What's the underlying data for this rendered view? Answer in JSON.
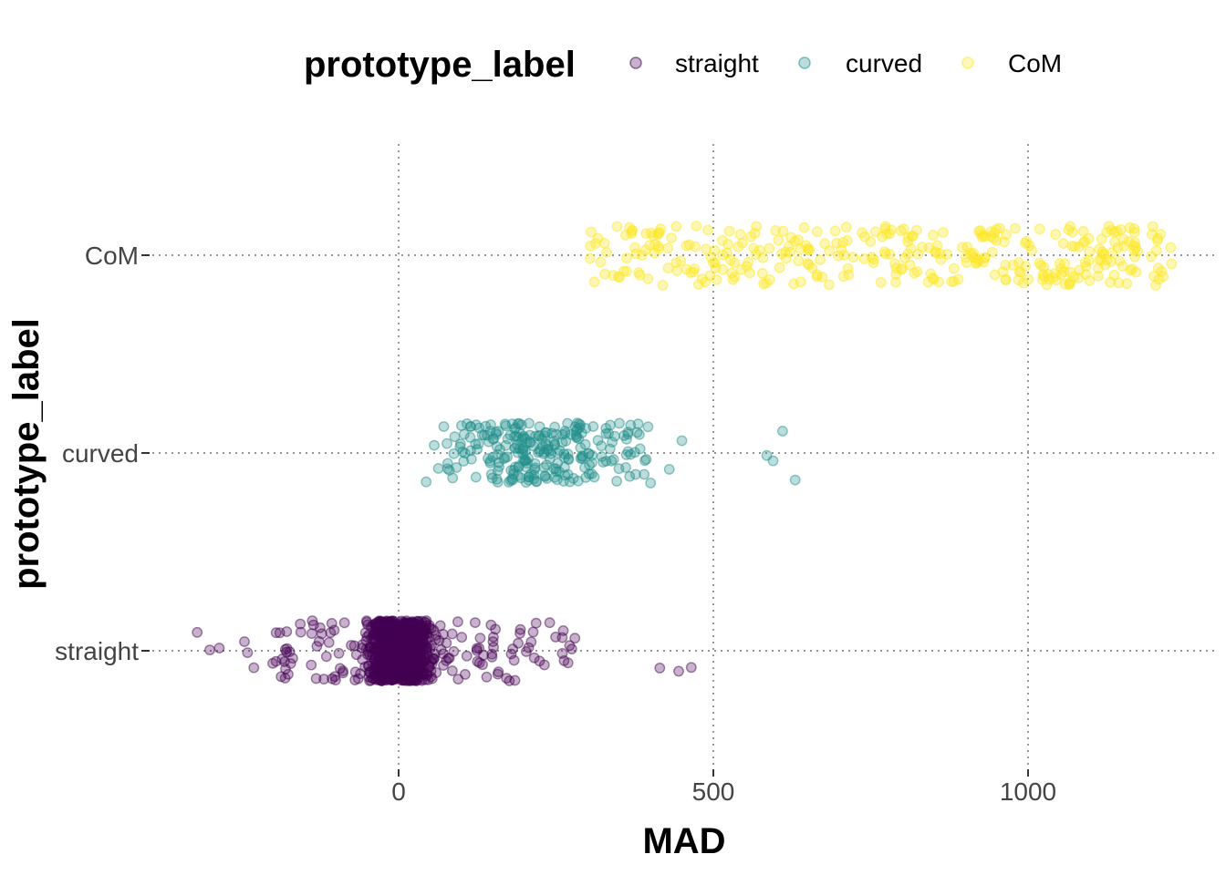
{
  "chart_data": {
    "type": "scatter",
    "jitter": true,
    "xlabel": "MAD",
    "ylabel": "prototype_label",
    "xlim": [
      -330,
      1300
    ],
    "x_ticks": [
      0,
      500,
      1000
    ],
    "y_categories": [
      "straight",
      "curved",
      "CoM"
    ],
    "grid": "dotted major gridlines",
    "legend": {
      "title": "prototype_label",
      "position": "top",
      "entries": [
        "straight",
        "curved",
        "CoM"
      ]
    },
    "point_alpha": 0.3,
    "series": [
      {
        "name": "straight",
        "color": "#440154",
        "x_range": [
          -320,
          465
        ],
        "bulk_range": [
          -105,
          125
        ],
        "approx_points": 1300,
        "outliers_x": [
          -320,
          -300,
          -285,
          -245,
          -240,
          -230,
          -200,
          -180,
          240,
          260,
          275,
          280,
          415,
          445,
          465
        ]
      },
      {
        "name": "curved",
        "color": "#21908C",
        "x_range": [
          15,
          630
        ],
        "bulk_range": [
          40,
          420
        ],
        "approx_points": 260,
        "outliers_x": [
          430,
          450,
          585,
          595,
          610,
          630
        ]
      },
      {
        "name": "CoM",
        "color": "#FDE725",
        "x_range": [
          280,
          1235
        ],
        "bulk_range": [
          300,
          1235
        ],
        "approx_points": 350,
        "outliers_x": []
      }
    ]
  }
}
